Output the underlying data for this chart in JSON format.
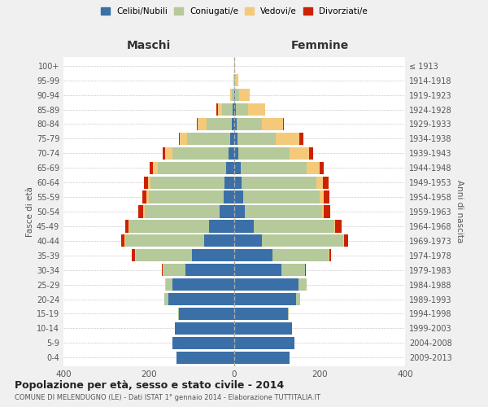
{
  "age_groups": [
    "0-4",
    "5-9",
    "10-14",
    "15-19",
    "20-24",
    "25-29",
    "30-34",
    "35-39",
    "40-44",
    "45-49",
    "50-54",
    "55-59",
    "60-64",
    "65-69",
    "70-74",
    "75-79",
    "80-84",
    "85-89",
    "90-94",
    "95-99",
    "100+"
  ],
  "birth_years": [
    "2009-2013",
    "2004-2008",
    "1999-2003",
    "1994-1998",
    "1989-1993",
    "1984-1988",
    "1979-1983",
    "1974-1978",
    "1969-1973",
    "1964-1968",
    "1959-1963",
    "1954-1958",
    "1949-1953",
    "1944-1948",
    "1939-1943",
    "1934-1938",
    "1929-1933",
    "1924-1928",
    "1919-1923",
    "1914-1918",
    "≤ 1913"
  ],
  "colors": {
    "celibi": "#3a6fa8",
    "coniugati": "#b5c99a",
    "vedovi": "#f5c97a",
    "divorziati": "#cc2200"
  },
  "maschi": {
    "celibi": [
      135,
      145,
      140,
      130,
      155,
      145,
      115,
      100,
      70,
      60,
      35,
      25,
      22,
      20,
      14,
      10,
      5,
      4,
      0,
      0,
      0
    ],
    "coniugati": [
      0,
      0,
      0,
      2,
      8,
      15,
      50,
      130,
      185,
      185,
      175,
      175,
      175,
      160,
      130,
      100,
      60,
      25,
      5,
      0,
      0
    ],
    "vedovi": [
      0,
      0,
      0,
      0,
      0,
      2,
      2,
      2,
      2,
      2,
      3,
      5,
      5,
      10,
      18,
      18,
      20,
      10,
      5,
      1,
      0
    ],
    "divorziati": [
      0,
      0,
      0,
      0,
      0,
      0,
      2,
      8,
      8,
      8,
      12,
      10,
      10,
      8,
      5,
      2,
      2,
      2,
      0,
      0,
      0
    ]
  },
  "femmine": {
    "celibi": [
      130,
      140,
      135,
      125,
      145,
      150,
      110,
      90,
      65,
      45,
      25,
      20,
      18,
      15,
      10,
      8,
      5,
      3,
      2,
      0,
      0
    ],
    "coniugati": [
      0,
      0,
      0,
      2,
      10,
      20,
      55,
      130,
      190,
      190,
      180,
      180,
      175,
      155,
      120,
      90,
      60,
      30,
      10,
      2,
      0
    ],
    "vedovi": [
      0,
      0,
      0,
      0,
      0,
      0,
      0,
      2,
      2,
      2,
      5,
      10,
      15,
      30,
      45,
      55,
      50,
      40,
      25,
      8,
      2
    ],
    "divorziati": [
      0,
      0,
      0,
      0,
      0,
      0,
      2,
      5,
      10,
      15,
      15,
      12,
      12,
      10,
      10,
      8,
      2,
      0,
      0,
      0,
      0
    ]
  },
  "title": "Popolazione per età, sesso e stato civile - 2014",
  "subtitle": "COMUNE DI MELENDUGNO (LE) - Dati ISTAT 1° gennaio 2014 - Elaborazione TUTTITALIA.IT",
  "xlabel_left": "Maschi",
  "xlabel_right": "Femmine",
  "ylabel_left": "Fasce di età",
  "ylabel_right": "Anni di nascita",
  "xlim": 400,
  "legend_labels": [
    "Celibi/Nubili",
    "Coniugati/e",
    "Vedovi/e",
    "Divorziati/e"
  ],
  "background_color": "#f0f0f0",
  "plot_bg_color": "#ffffff",
  "grid_color": "#cccccc"
}
